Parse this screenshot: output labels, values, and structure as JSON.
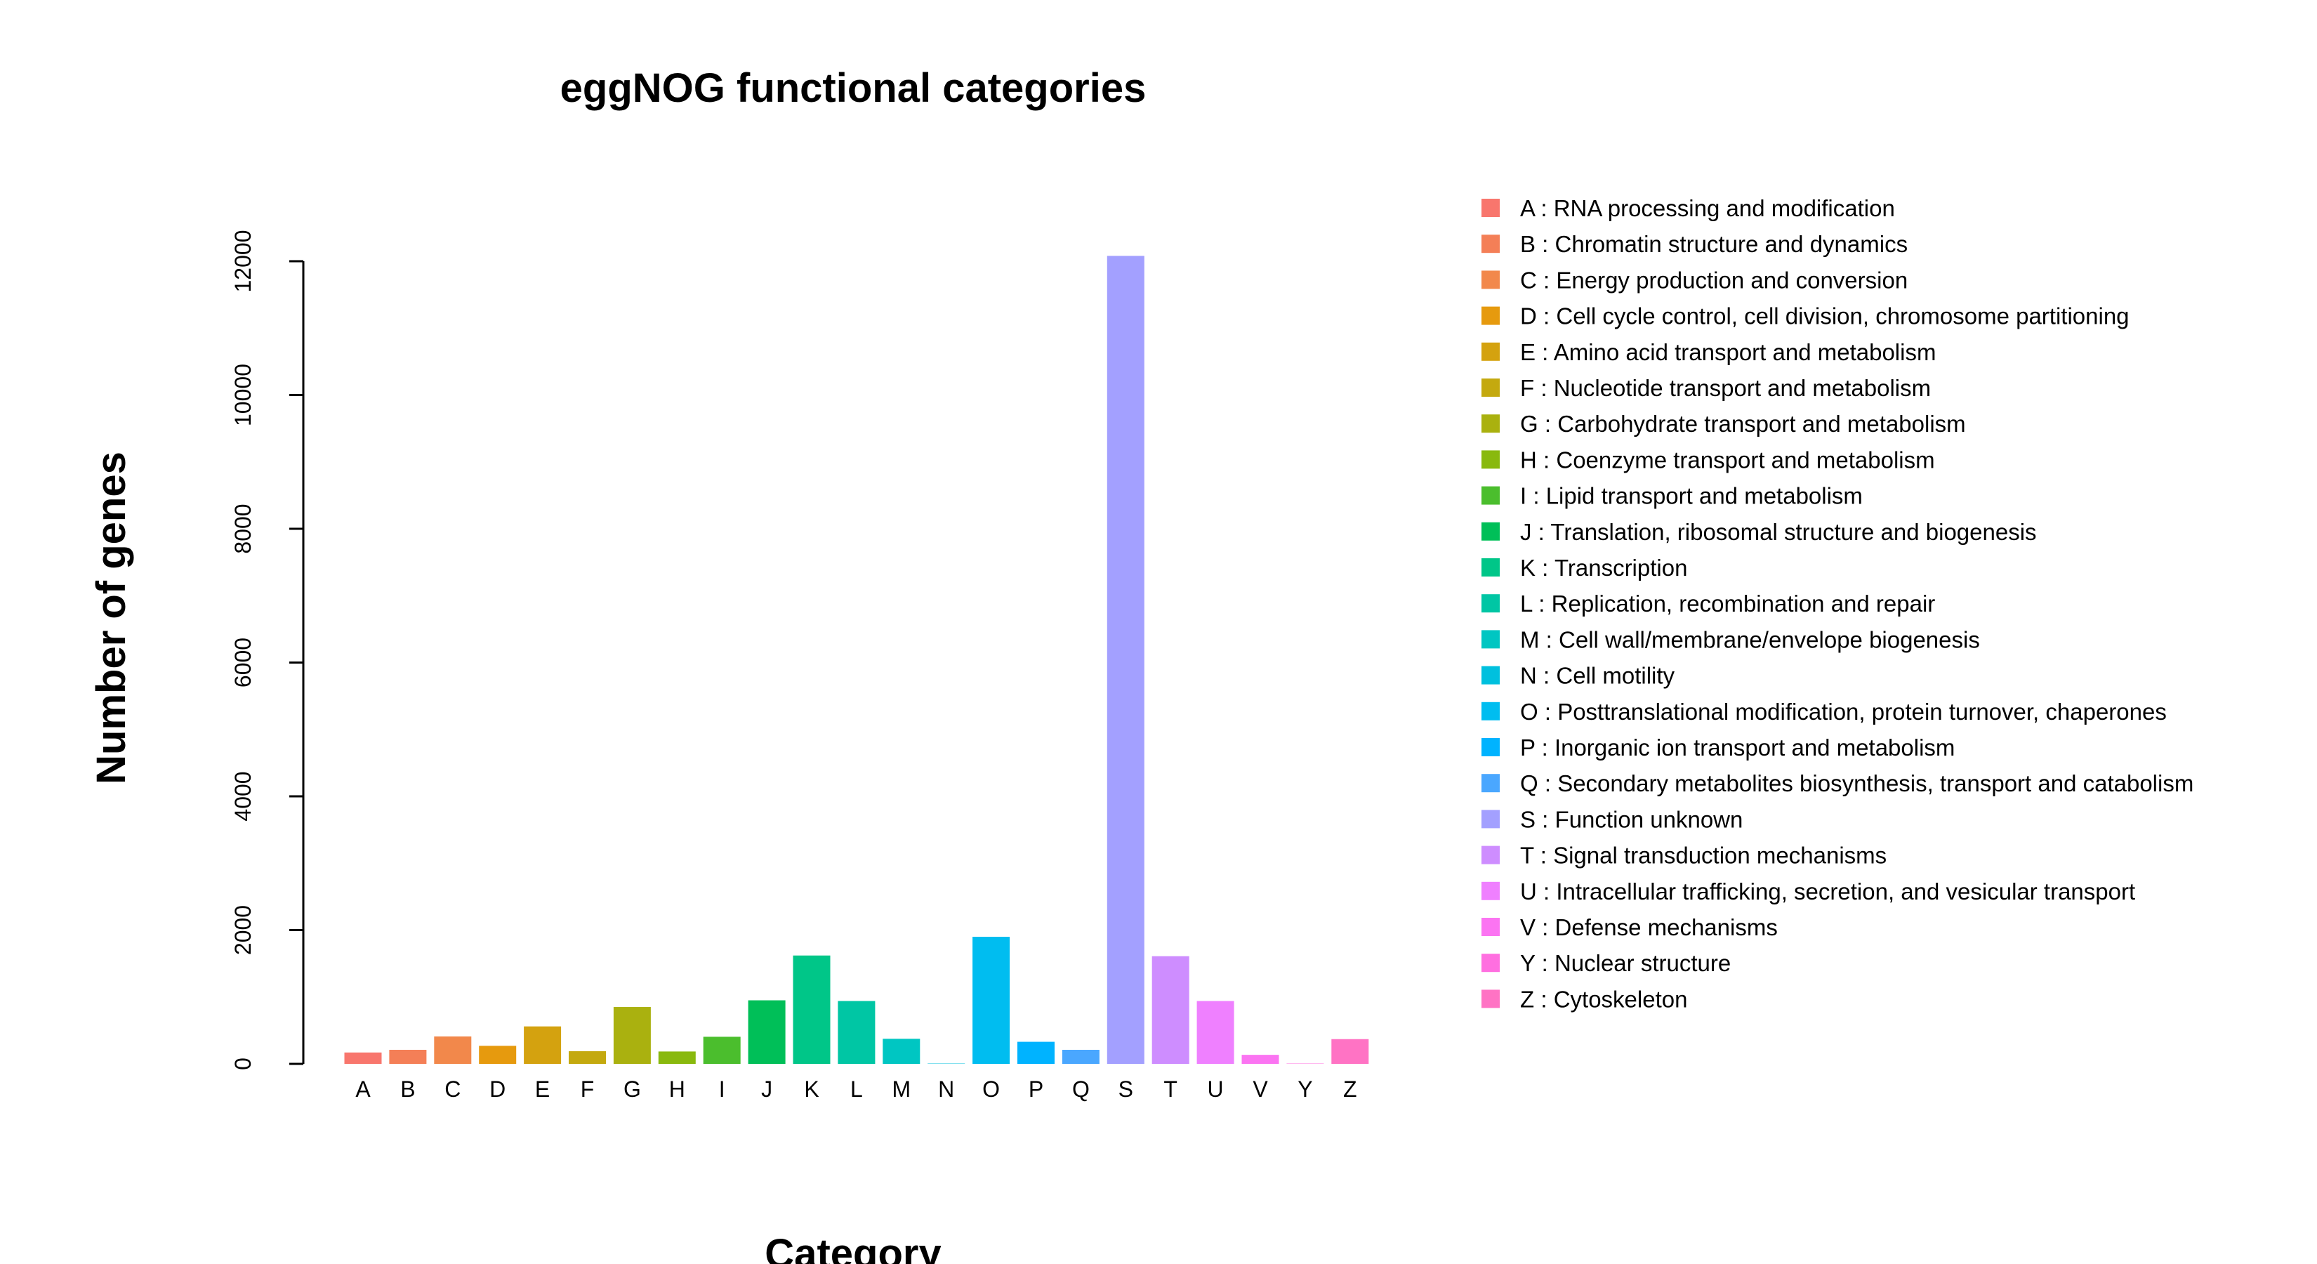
{
  "chart_data": {
    "type": "bar",
    "title": "eggNOG functional categories",
    "xlabel": "Category",
    "ylabel": "Number of genes",
    "ylim": [
      0,
      12000
    ],
    "yticks": [
      0,
      2000,
      4000,
      6000,
      8000,
      10000,
      12000
    ],
    "grid": false,
    "legend_position": "right",
    "categories": [
      "A",
      "B",
      "C",
      "D",
      "E",
      "F",
      "G",
      "H",
      "I",
      "J",
      "K",
      "L",
      "M",
      "N",
      "O",
      "P",
      "Q",
      "S",
      "T",
      "U",
      "V",
      "Y",
      "Z"
    ],
    "values": [
      170,
      210,
      410,
      270,
      560,
      190,
      850,
      185,
      405,
      950,
      1620,
      940,
      375,
      5,
      1900,
      330,
      210,
      12080,
      1610,
      940,
      135,
      5,
      370
    ],
    "colors": [
      "#F8766D",
      "#F47F57",
      "#F2884B",
      "#E69A0E",
      "#D4A20F",
      "#C4A90F",
      "#AAB10F",
      "#89B90E",
      "#4BBE2D",
      "#00BF58",
      "#00C688",
      "#00C6A4",
      "#00C6C2",
      "#00C0DE",
      "#00BDF0",
      "#00B3FF",
      "#4AA7FF",
      "#A3A0FF",
      "#CE8DFF",
      "#EF80FF",
      "#FB74F2",
      "#FF6FE0",
      "#FF73C4"
    ],
    "legend": [
      {
        "code": "A",
        "label": "RNA processing and modification"
      },
      {
        "code": "B",
        "label": "Chromatin structure and dynamics"
      },
      {
        "code": "C",
        "label": "Energy production and conversion"
      },
      {
        "code": "D",
        "label": "Cell cycle control, cell division, chromosome partitioning"
      },
      {
        "code": "E",
        "label": "Amino acid transport and metabolism"
      },
      {
        "code": "F",
        "label": "Nucleotide transport and metabolism"
      },
      {
        "code": "G",
        "label": "Carbohydrate transport and metabolism"
      },
      {
        "code": "H",
        "label": "Coenzyme transport and metabolism"
      },
      {
        "code": "I",
        "label": "Lipid transport and metabolism"
      },
      {
        "code": "J",
        "label": "Translation, ribosomal structure and biogenesis"
      },
      {
        "code": "K",
        "label": "Transcription"
      },
      {
        "code": "L",
        "label": "Replication, recombination and repair"
      },
      {
        "code": "M",
        "label": "Cell wall/membrane/envelope biogenesis"
      },
      {
        "code": "N",
        "label": "Cell motility"
      },
      {
        "code": "O",
        "label": "Posttranslational modification, protein turnover, chaperones"
      },
      {
        "code": "P",
        "label": "Inorganic ion transport and metabolism"
      },
      {
        "code": "Q",
        "label": "Secondary metabolites biosynthesis, transport and catabolism"
      },
      {
        "code": "S",
        "label": "Function unknown"
      },
      {
        "code": "T",
        "label": "Signal transduction mechanisms"
      },
      {
        "code": "U",
        "label": "Intracellular trafficking, secretion, and vesicular transport"
      },
      {
        "code": "V",
        "label": "Defense mechanisms"
      },
      {
        "code": "Y",
        "label": "Nuclear structure"
      },
      {
        "code": "Z",
        "label": "Cytoskeleton"
      }
    ]
  }
}
